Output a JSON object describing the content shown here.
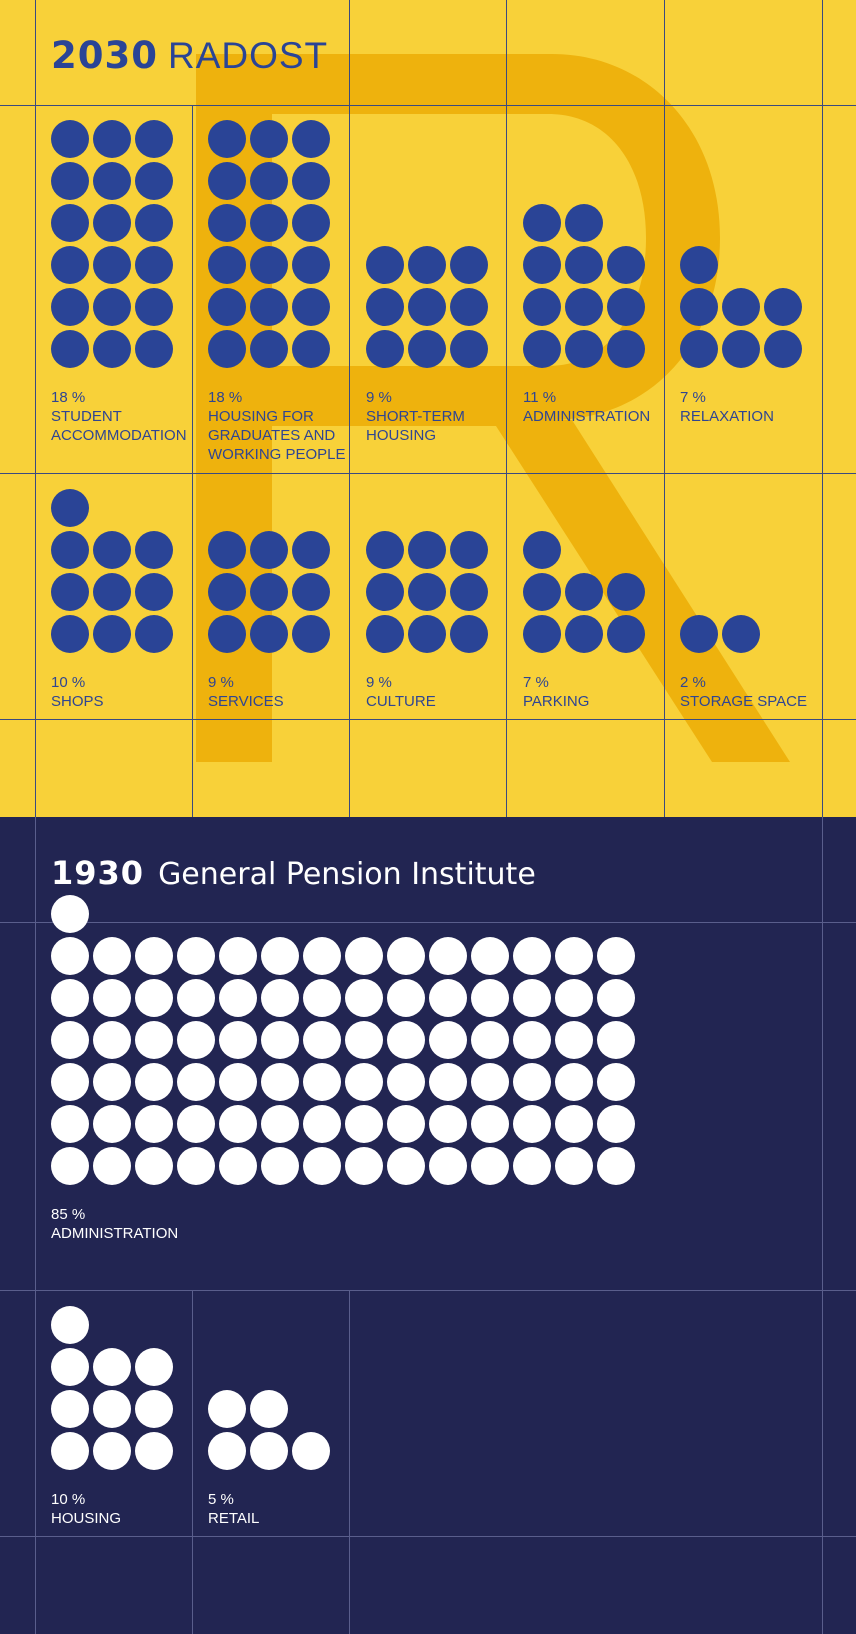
{
  "sections": [
    {
      "id": "2030",
      "title_year": "2030",
      "title_name": "RADOST",
      "colors": {
        "background": "#f8d139",
        "dots": "#2a4496",
        "text": "#2a4496",
        "watermark_letter": "#eeb20d"
      },
      "items": [
        {
          "percent": "18 %",
          "label": "STUDENT ACCOMMODATION",
          "value": 18
        },
        {
          "percent": "18 %",
          "label": "HOUSING FOR GRADUATES AND WORKING PEOPLE",
          "value": 18
        },
        {
          "percent": "9 %",
          "label": "SHORT-TERM HOUSING",
          "value": 9
        },
        {
          "percent": "11 %",
          "label": "ADMINISTRATION",
          "value": 11
        },
        {
          "percent": "7 %",
          "label": "RELAXATION",
          "value": 7
        },
        {
          "percent": "10 %",
          "label": "SHOPS",
          "value": 10
        },
        {
          "percent": "9 %",
          "label": "SERVICES",
          "value": 9
        },
        {
          "percent": "9 %",
          "label": "CULTURE",
          "value": 9
        },
        {
          "percent": "7 %",
          "label": "PARKING",
          "value": 7
        },
        {
          "percent": "2 %",
          "label": "STORAGE SPACE",
          "value": 2
        }
      ]
    },
    {
      "id": "1930",
      "title_year": "1930",
      "title_name": "General Pension Institute",
      "colors": {
        "background": "#222552",
        "dots": "#ffffff",
        "text": "#ffffff"
      },
      "items": [
        {
          "percent": "85 %",
          "label": "ADMINISTRATION",
          "value": 85
        },
        {
          "percent": "10 %",
          "label": "HOUSING",
          "value": 10
        },
        {
          "percent": "5 %",
          "label": "RETAIL",
          "value": 5
        }
      ]
    }
  ],
  "chart_data": {
    "type": "pictogram",
    "unit": "one dot = 1 %",
    "groups": [
      {
        "name": "2030 RADOST",
        "categories": [
          "STUDENT ACCOMMODATION",
          "HOUSING FOR GRADUATES AND WORKING PEOPLE",
          "SHORT-TERM HOUSING",
          "ADMINISTRATION",
          "RELAXATION",
          "SHOPS",
          "SERVICES",
          "CULTURE",
          "PARKING",
          "STORAGE SPACE"
        ],
        "values": [
          18,
          18,
          9,
          11,
          7,
          10,
          9,
          9,
          7,
          2
        ]
      },
      {
        "name": "1930 General Pension Institute",
        "categories": [
          "ADMINISTRATION",
          "HOUSING",
          "RETAIL"
        ],
        "values": [
          85,
          10,
          5
        ]
      }
    ]
  }
}
